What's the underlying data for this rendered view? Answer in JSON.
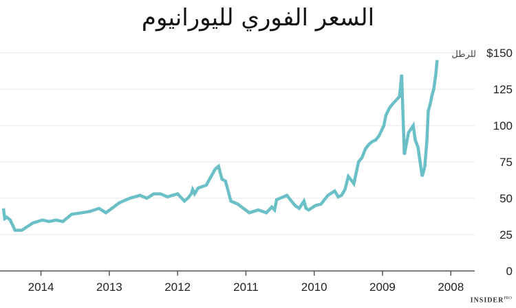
{
  "chart_data": {
    "type": "line",
    "title": "السعر الفوري لليورانيوم",
    "xlabel": "",
    "ylabel": "",
    "y_unit_prefix": "$",
    "y_unit_label": "للرطل",
    "ylim": [
      0,
      150
    ],
    "y_ticks": [
      0,
      25,
      50,
      75,
      100,
      125,
      150
    ],
    "x_ticks": [
      2014,
      2013,
      2012,
      2011,
      2010,
      2009,
      2008
    ],
    "x_axis_reversed": true,
    "xlim": [
      2014.6,
      2007.65
    ],
    "grid": true,
    "color": "#6bbfc7",
    "series": [
      {
        "name": "",
        "x": [
          2014.55,
          2014.53,
          2014.5,
          2014.45,
          2014.38,
          2014.28,
          2014.12,
          2013.98,
          2013.88,
          2013.78,
          2013.68,
          2013.55,
          2013.4,
          2013.28,
          2013.15,
          2013.05,
          2012.85,
          2012.7,
          2012.55,
          2012.45,
          2012.35,
          2012.25,
          2012.15,
          2012.0,
          2011.9,
          2011.85,
          2011.8,
          2011.78,
          2011.75,
          2011.7,
          2011.58,
          2011.45,
          2011.4,
          2011.35,
          2011.3,
          2011.22,
          2011.12,
          2010.95,
          2010.82,
          2010.7,
          2010.62,
          2010.58,
          2010.55,
          2010.4,
          2010.35,
          2010.28,
          2010.22,
          2010.15,
          2010.12,
          2010.08,
          2009.98,
          2009.9,
          2009.85,
          2009.8,
          2009.7,
          2009.65,
          2009.6,
          2009.55,
          2009.5,
          2009.45,
          2009.42,
          2009.35,
          2009.3,
          2009.25,
          2009.2,
          2009.15,
          2009.1,
          2009.05,
          2008.98,
          2008.95,
          2008.9,
          2008.85,
          2008.75,
          2008.72,
          2008.68,
          2008.62,
          2008.55,
          2008.52,
          2008.48,
          2008.42,
          2008.38,
          2008.35,
          2008.33,
          2008.3,
          2008.28,
          2008.25,
          2008.22,
          2008.2
        ],
        "values": [
          43,
          36,
          37,
          35,
          28,
          28,
          33,
          35,
          34,
          35,
          34,
          39,
          40,
          41,
          43,
          40,
          47,
          50,
          52,
          50,
          53,
          53,
          51,
          53,
          48,
          50,
          53,
          56,
          53,
          57,
          59,
          70,
          72,
          63,
          62,
          48,
          46,
          40,
          42,
          40,
          44,
          42,
          49,
          52,
          49,
          45,
          43,
          48,
          43,
          42,
          45,
          46,
          49,
          52,
          55,
          51,
          52,
          56,
          65,
          62,
          60,
          75,
          78,
          84,
          87,
          89,
          90,
          93,
          100,
          107,
          112,
          115,
          120,
          135,
          80,
          95,
          100,
          90,
          85,
          65,
          72,
          90,
          110,
          115,
          120,
          125,
          135,
          145
        ]
      }
    ]
  },
  "branding": {
    "name": "INSIDER",
    "suffix": "PRO"
  }
}
